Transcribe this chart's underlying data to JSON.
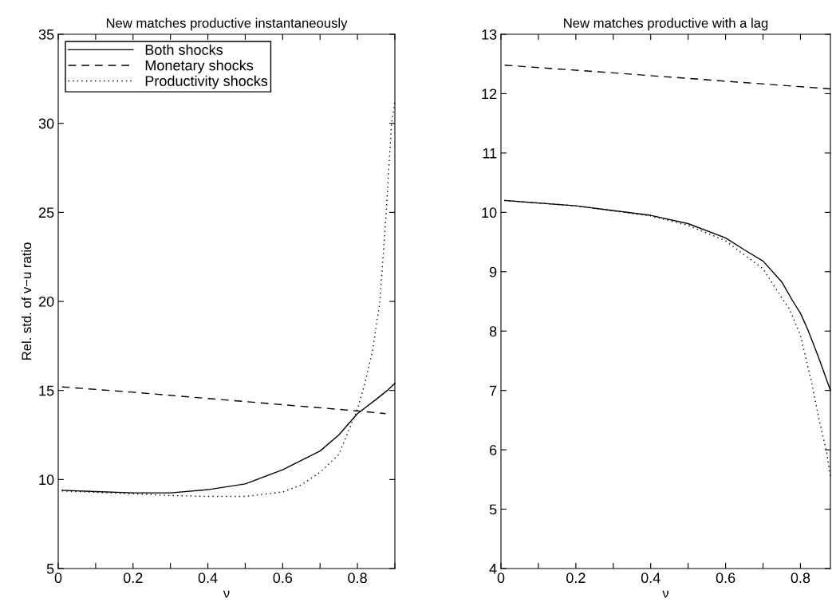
{
  "chart_data": [
    {
      "type": "line",
      "title": "New matches productive instantaneously",
      "xlabel": "ν",
      "ylabel": "Rel. std. of v−u ratio",
      "xlim": [
        0,
        0.9
      ],
      "ylim": [
        5,
        35
      ],
      "xticks": [
        0,
        {
          "value": 0.1,
          "label": null
        },
        0.2,
        {
          "value": 0.3,
          "label": null
        },
        0.4,
        {
          "value": 0.5,
          "label": null
        },
        0.6,
        {
          "value": 0.7,
          "label": null
        },
        0.8,
        {
          "value": 0.9,
          "label": null
        }
      ],
      "yticks": [
        5,
        10,
        15,
        20,
        25,
        30,
        35
      ],
      "grid": false,
      "legend": "top left",
      "marker": "none",
      "series": [
        {
          "name": "Both shocks",
          "color": "#000000",
          "line_style": "solid",
          "x": [
            0.01,
            0.1,
            0.2,
            0.3,
            0.4,
            0.5,
            0.6,
            0.7,
            0.75,
            0.8,
            0.85,
            0.88,
            0.9
          ],
          "values": [
            9.39,
            9.32,
            9.25,
            9.25,
            9.43,
            9.75,
            10.55,
            11.6,
            12.5,
            13.7,
            14.5,
            15.0,
            15.4
          ]
        },
        {
          "name": "Monetary shocks",
          "color": "#000000",
          "line_style": "dashed",
          "x": [
            0.01,
            0.2,
            0.4,
            0.6,
            0.8,
            0.875
          ],
          "values": [
            15.2,
            14.9,
            14.55,
            14.2,
            13.85,
            13.7
          ]
        },
        {
          "name": "Productivity shocks",
          "color": "#000000",
          "line_style": "dotted",
          "x": [
            0.01,
            0.1,
            0.2,
            0.3,
            0.4,
            0.5,
            0.6,
            0.65,
            0.7,
            0.75,
            0.8,
            0.82,
            0.84,
            0.86,
            0.877,
            0.891,
            0.9
          ],
          "values": [
            9.35,
            9.28,
            9.2,
            9.1,
            9.05,
            9.05,
            9.3,
            9.7,
            10.4,
            11.4,
            13.95,
            15.4,
            17.2,
            20.0,
            25.0,
            30.0,
            31.2
          ]
        }
      ]
    },
    {
      "type": "line",
      "title": "New matches productive with a lag",
      "xlabel": "ν",
      "xlim": [
        0,
        0.88
      ],
      "ylim": [
        4,
        13
      ],
      "xticks": [
        0,
        {
          "value": 0.1,
          "label": null
        },
        0.2,
        {
          "value": 0.3,
          "label": null
        },
        0.4,
        {
          "value": 0.5,
          "label": null
        },
        0.6,
        {
          "value": 0.7,
          "label": null
        },
        0.8
      ],
      "yticks": [
        4,
        5,
        6,
        7,
        8,
        9,
        10,
        11,
        12,
        13
      ],
      "grid": false,
      "marker": "none",
      "series": [
        {
          "color": "#000000",
          "line_style": "solid",
          "x": [
            0.01,
            0.2,
            0.4,
            0.5,
            0.6,
            0.65,
            0.7,
            0.75,
            0.78,
            0.8,
            0.82,
            0.85,
            0.88
          ],
          "values": [
            10.2,
            10.11,
            9.95,
            9.81,
            9.57,
            9.37,
            9.18,
            8.83,
            8.5,
            8.3,
            8.02,
            7.53,
            7.0
          ]
        },
        {
          "color": "#000000",
          "line_style": "dashed",
          "x": [
            0.01,
            0.3,
            0.6,
            0.88
          ],
          "values": [
            12.48,
            12.35,
            12.21,
            12.08
          ]
        },
        {
          "color": "#000000",
          "line_style": "dotted",
          "x": [
            0.01,
            0.2,
            0.4,
            0.5,
            0.6,
            0.7,
            0.75,
            0.77,
            0.8,
            0.83,
            0.85,
            0.87,
            0.88
          ],
          "values": [
            10.2,
            10.11,
            9.94,
            9.78,
            9.52,
            9.05,
            8.56,
            8.38,
            7.93,
            7.13,
            6.5,
            5.96,
            5.55
          ]
        }
      ]
    }
  ]
}
